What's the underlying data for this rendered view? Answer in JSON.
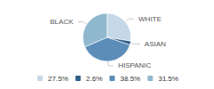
{
  "chart_data": {
    "type": "pie",
    "categories": [
      "WHITE",
      "ASIAN",
      "HISPANIC",
      "BLACK"
    ],
    "values": [
      27.5,
      2.6,
      38.5,
      31.5
    ],
    "value_labels": [
      "27.5%",
      "2.6%",
      "38.5%",
      "31.5%"
    ],
    "colors": [
      "#c5d8e8",
      "#2e5f8a",
      "#5b8db8",
      "#8fb8ce"
    ],
    "legend": "bottom"
  }
}
